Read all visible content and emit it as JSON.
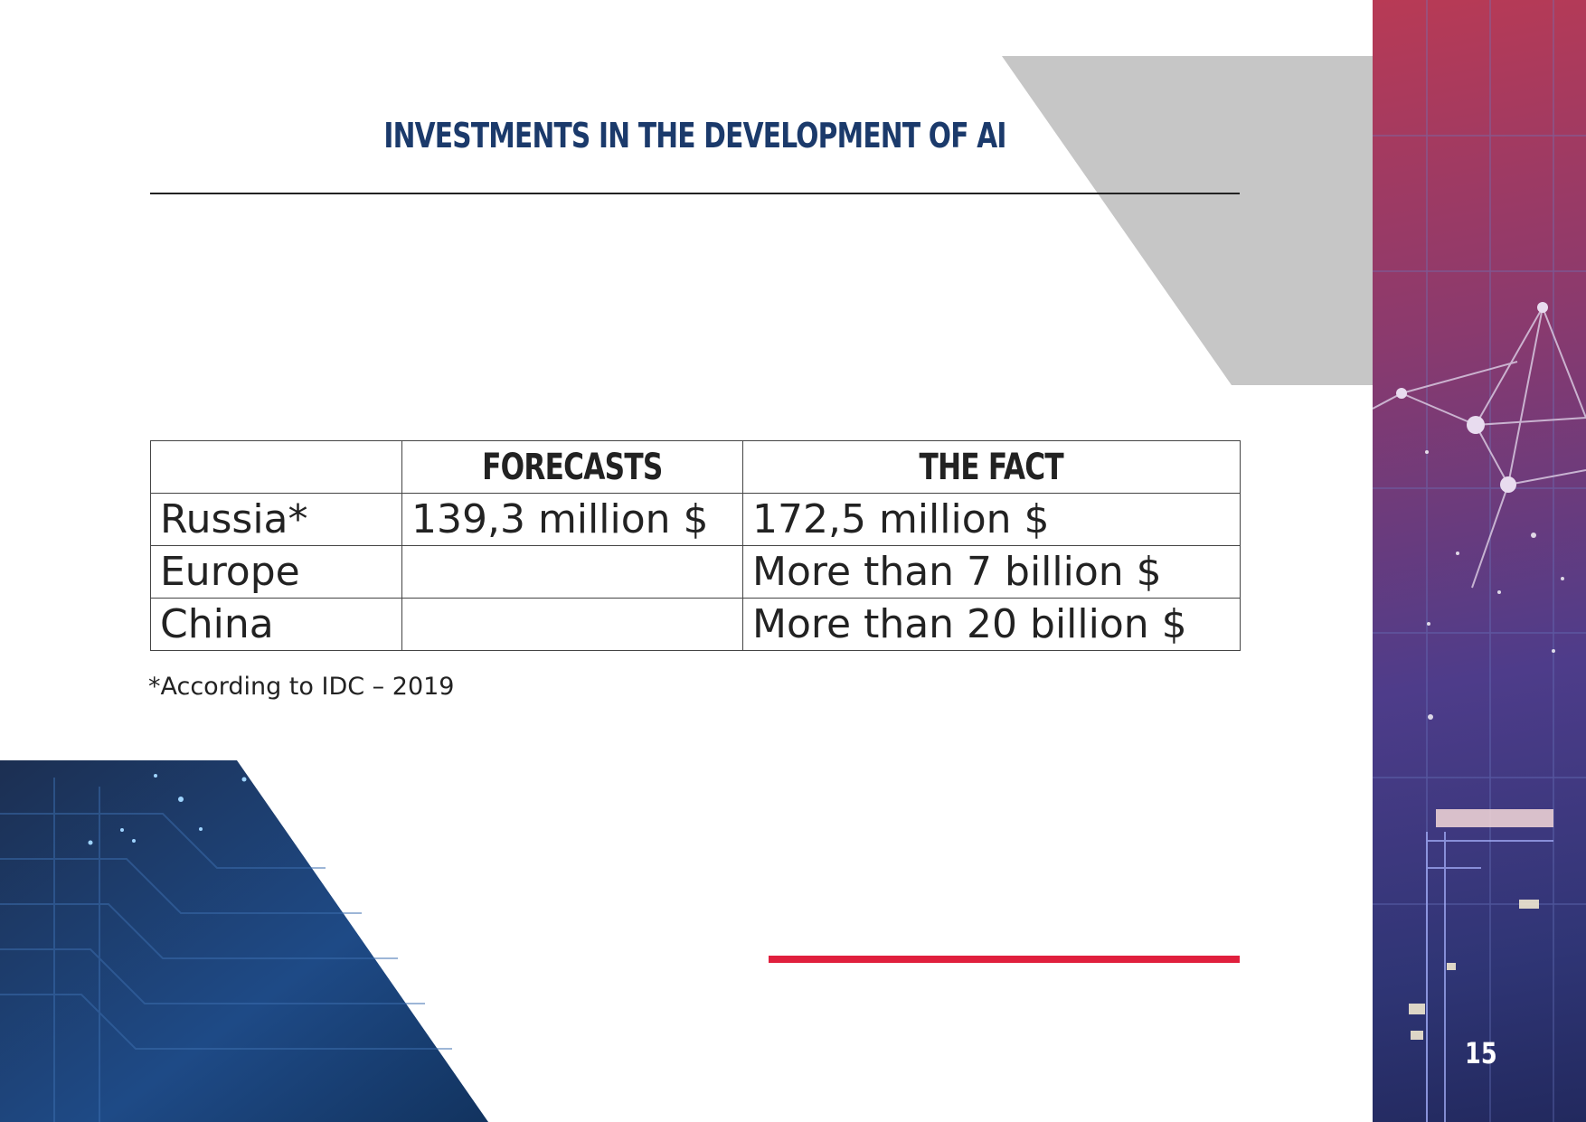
{
  "header": {
    "title": "INVESTMENTS IN THE DEVELOPMENT OF AI"
  },
  "table": {
    "columns": [
      "",
      "FORECASTS",
      "THE FACT"
    ],
    "rows": [
      {
        "region": "Russia*",
        "forecast": "139,3 million $",
        "fact": "172,5 million $"
      },
      {
        "region": "Europe",
        "forecast": "",
        "fact": "More than 7 billion $"
      },
      {
        "region": "China",
        "forecast": "",
        "fact": "More than 20 billion $"
      }
    ]
  },
  "footnote": "*According to IDC – 2019",
  "page_number": "15",
  "colors": {
    "title": "#1b3a6b",
    "accent_red": "#e01f3d",
    "gray_shape": "#c6c6c6"
  }
}
